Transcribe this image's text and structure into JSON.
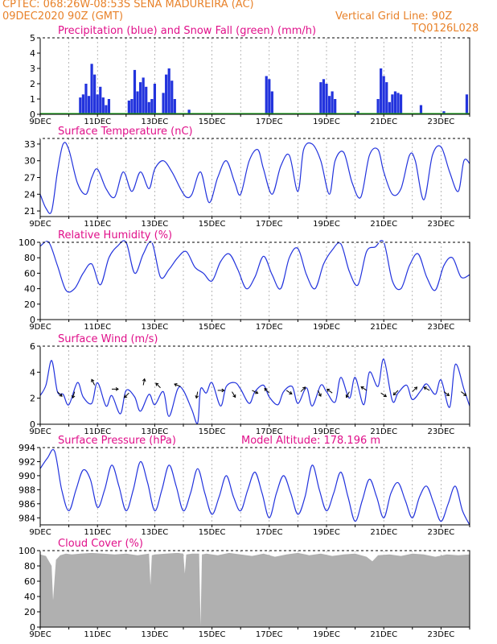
{
  "header": {
    "line1": "CPTEC:   068:26W-08:53S   SENA MADUREIRA (AC)",
    "line2": "09DEC2020 90Z (GMT)",
    "grid_note": "Vertical Grid Line: 90Z",
    "run_code": "TQ0126L028"
  },
  "colors": {
    "header": "#e8822a",
    "title": "#e0108a",
    "line": "#2233dd",
    "snow": "#22aa22",
    "cloud": "#b0b0b0",
    "arrow": "#000000"
  },
  "x_days": [
    "9DEC",
    "11DEC",
    "13DEC",
    "15DEC",
    "17DEC",
    "19DEC",
    "21DEC",
    "23DEC"
  ],
  "x_range": [
    9,
    24
  ],
  "chart_data": [
    {
      "id": "precip",
      "type": "bar",
      "title": "Precipitation (blue) and Snow Fall (green) (mm/h)",
      "ylim": [
        0,
        5
      ],
      "yticks": [
        "0",
        "1",
        "2",
        "3",
        "4",
        "5"
      ],
      "x_labels": [
        "9DEC",
        "11DEC",
        "13DEC",
        "15DEC",
        "17DEC",
        "19DEC",
        "21DEC",
        "23DEC"
      ],
      "series": [
        {
          "name": "Precipitation",
          "color": "#2233dd",
          "x": [
            10.4,
            10.5,
            10.6,
            10.7,
            10.8,
            10.9,
            11.0,
            11.1,
            11.2,
            11.3,
            11.4,
            12.1,
            12.2,
            12.3,
            12.4,
            12.5,
            12.6,
            12.7,
            12.8,
            12.9,
            13.0,
            13.3,
            13.4,
            13.5,
            13.6,
            13.7,
            14.2,
            16.9,
            17.0,
            17.1,
            18.8,
            18.9,
            19.0,
            19.1,
            19.2,
            19.3,
            20.1,
            20.8,
            20.9,
            21.0,
            21.1,
            21.2,
            21.3,
            21.4,
            21.5,
            21.6,
            22.3,
            23.1,
            23.9
          ],
          "y": [
            1.1,
            1.3,
            2.0,
            1.2,
            3.3,
            2.6,
            1.3,
            1.8,
            1.1,
            0.6,
            1.0,
            0.9,
            1.0,
            2.9,
            1.5,
            2.1,
            2.4,
            1.8,
            0.8,
            1.0,
            2.0,
            1.4,
            2.6,
            3.0,
            2.2,
            1.0,
            0.3,
            2.5,
            2.3,
            1.5,
            2.1,
            2.3,
            2.0,
            1.2,
            1.5,
            1.0,
            0.2,
            1.0,
            3.0,
            2.5,
            2.1,
            0.8,
            1.3,
            1.5,
            1.4,
            1.3,
            0.6,
            0.2,
            1.3
          ]
        },
        {
          "name": "Snow Fall",
          "color": "#22aa22",
          "x": [
            9.0,
            24.0
          ],
          "y": [
            0,
            0
          ]
        }
      ]
    },
    {
      "id": "temp",
      "type": "line",
      "title": "Surface Temperature (nC)",
      "ylim": [
        20,
        34
      ],
      "yticks": [
        "21",
        "24",
        "27",
        "30",
        "33"
      ],
      "x_labels": [
        "9DEC",
        "11DEC",
        "13DEC",
        "15DEC",
        "17DEC",
        "19DEC",
        "21DEC",
        "23DEC"
      ],
      "series": [
        {
          "name": "Temperature",
          "color": "#2233dd",
          "x": [
            9.0,
            9.2,
            9.4,
            9.6,
            9.8,
            10.0,
            10.3,
            10.6,
            10.8,
            11.0,
            11.3,
            11.6,
            11.9,
            12.2,
            12.5,
            12.8,
            13.0,
            13.3,
            13.6,
            13.9,
            14.1,
            14.3,
            14.6,
            14.9,
            15.2,
            15.5,
            15.8,
            16.0,
            16.3,
            16.6,
            16.8,
            17.1,
            17.4,
            17.7,
            18.0,
            18.2,
            18.5,
            18.8,
            19.1,
            19.3,
            19.6,
            19.9,
            20.2,
            20.5,
            20.8,
            21.0,
            21.3,
            21.6,
            21.9,
            22.1,
            22.4,
            22.7,
            23.0,
            23.3,
            23.6,
            23.8,
            24.0
          ],
          "y": [
            24,
            21.5,
            21,
            28,
            33,
            32,
            26,
            24,
            27,
            28.5,
            25,
            23.5,
            28,
            24.5,
            28,
            25,
            28.5,
            30,
            28,
            25,
            23.5,
            24,
            28,
            22.5,
            27,
            30,
            26,
            24,
            30,
            32,
            28.5,
            24,
            29,
            31,
            24.5,
            32,
            33,
            30,
            24,
            30,
            31.5,
            26,
            23.5,
            31,
            32,
            28,
            24,
            25,
            31,
            30,
            23,
            31,
            32.5,
            28,
            24.5,
            30,
            29.5
          ]
        }
      ]
    },
    {
      "id": "rh",
      "type": "line",
      "title": "Relative Humidity (%)",
      "ylim": [
        0,
        100
      ],
      "yticks": [
        "0",
        "20",
        "40",
        "60",
        "80",
        "100"
      ],
      "x_labels": [
        "9DEC",
        "11DEC",
        "13DEC",
        "15DEC",
        "17DEC",
        "19DEC",
        "21DEC",
        "23DEC"
      ],
      "series": [
        {
          "name": "Relative Humidity",
          "color": "#2233dd",
          "x": [
            9.0,
            9.3,
            9.6,
            9.9,
            10.2,
            10.5,
            10.8,
            11.1,
            11.4,
            11.7,
            12.0,
            12.3,
            12.6,
            12.9,
            13.2,
            13.5,
            13.8,
            14.1,
            14.4,
            14.7,
            15.0,
            15.3,
            15.6,
            15.9,
            16.2,
            16.5,
            16.8,
            17.1,
            17.4,
            17.7,
            18.0,
            18.3,
            18.6,
            18.9,
            19.2,
            19.5,
            19.8,
            20.1,
            20.4,
            20.7,
            21.0,
            21.3,
            21.6,
            21.9,
            22.2,
            22.5,
            22.8,
            23.1,
            23.4,
            23.7,
            24.0
          ],
          "y": [
            95,
            100,
            70,
            38,
            40,
            60,
            72,
            45,
            80,
            95,
            100,
            60,
            85,
            100,
            55,
            65,
            80,
            88,
            68,
            60,
            50,
            75,
            85,
            65,
            40,
            55,
            82,
            58,
            40,
            80,
            92,
            58,
            40,
            72,
            90,
            98,
            62,
            45,
            88,
            94,
            100,
            50,
            40,
            70,
            85,
            55,
            38,
            70,
            80,
            55,
            58
          ]
        }
      ]
    },
    {
      "id": "wind",
      "type": "line",
      "title": "Surface Wind (m/s)",
      "ylim": [
        0,
        6
      ],
      "yticks": [
        "0",
        "2",
        "4",
        "6"
      ],
      "x_labels": [
        "9DEC",
        "11DEC",
        "13DEC",
        "15DEC",
        "17DEC",
        "19DEC",
        "21DEC",
        "23DEC"
      ],
      "series": [
        {
          "name": "Wind Speed",
          "color": "#2233dd",
          "x": [
            9.0,
            9.2,
            9.4,
            9.6,
            9.8,
            10.0,
            10.3,
            10.5,
            10.8,
            11.0,
            11.3,
            11.5,
            11.8,
            12.0,
            12.3,
            12.5,
            12.8,
            13.0,
            13.3,
            13.5,
            13.8,
            14.0,
            14.3,
            14.5,
            14.6,
            14.8,
            15.0,
            15.3,
            15.5,
            15.8,
            16.0,
            16.3,
            16.5,
            16.8,
            17.0,
            17.3,
            17.5,
            17.8,
            18.0,
            18.3,
            18.5,
            18.8,
            19.0,
            19.3,
            19.5,
            19.8,
            20.0,
            20.3,
            20.5,
            20.8,
            21.0,
            21.3,
            21.5,
            21.8,
            22.0,
            22.3,
            22.5,
            22.8,
            23.0,
            23.3,
            23.5,
            23.8,
            24.0
          ],
          "y": [
            2.2,
            3.0,
            4.9,
            2.5,
            2.3,
            1.5,
            3.2,
            2.1,
            1.6,
            3.2,
            1.4,
            2.2,
            0.8,
            2.6,
            2.1,
            1.0,
            2.3,
            1.5,
            2.5,
            0.6,
            2.7,
            2.6,
            1.1,
            0.1,
            2.7,
            2.4,
            3.2,
            1.4,
            2.9,
            3.2,
            2.7,
            1.6,
            2.5,
            3.0,
            2.1,
            1.5,
            2.5,
            2.9,
            1.6,
            2.8,
            1.4,
            3.0,
            2.5,
            1.7,
            3.6,
            2.0,
            3.6,
            1.5,
            4.0,
            2.9,
            5.0,
            1.8,
            2.4,
            3.0,
            1.9,
            2.6,
            3.1,
            2.3,
            3.4,
            1.3,
            4.6,
            2.7,
            1.4
          ]
        }
      ],
      "vectors": {
        "x": [
          9.6,
          10.2,
          10.9,
          11.5,
          12.1,
          12.6,
          13.2,
          13.9,
          14.5,
          15.2,
          15.7,
          16.4,
          17.0,
          17.6,
          18.1,
          18.7,
          19.2,
          19.8,
          20.4,
          20.9,
          21.5,
          22.0,
          22.6,
          23.1,
          23.7
        ],
        "y": [
          2.5,
          2.5,
          3.0,
          2.7,
          2.4,
          3.0,
          2.8,
          2.9,
          2.5,
          2.6,
          2.5,
          2.6,
          2.4,
          2.6,
          2.5,
          2.6,
          2.4,
          2.5,
          2.6,
          2.4,
          2.6,
          2.5,
          2.6,
          2.5,
          2.5
        ],
        "u": [
          1.0,
          -0.3,
          -0.5,
          1.0,
          -0.8,
          0.2,
          -0.6,
          -1.0,
          -0.2,
          0.8,
          0.6,
          1.0,
          -0.7,
          0.9,
          0.7,
          0.5,
          -0.8,
          -0.5,
          -0.9,
          0.9,
          -0.7,
          0.6,
          -0.9,
          0.8,
          0.8
        ],
        "v": [
          -1.0,
          -1.0,
          1.0,
          0.0,
          -0.8,
          1.0,
          0.6,
          0.4,
          -1.0,
          0.0,
          -1.0,
          -0.5,
          0.7,
          -0.6,
          0.7,
          -1.0,
          0.6,
          -0.9,
          0.6,
          -0.6,
          -0.7,
          0.6,
          0.5,
          -0.6,
          -0.6
        ]
      }
    },
    {
      "id": "pres",
      "type": "line",
      "title": "Surface Pressure (hPa)",
      "annotation": "Model Altitude: 178.196 m",
      "ylim": [
        983,
        994
      ],
      "yticks": [
        "984",
        "986",
        "988",
        "990",
        "992",
        "994"
      ],
      "x_labels": [
        "9DEC",
        "11DEC",
        "13DEC",
        "15DEC",
        "17DEC",
        "19DEC",
        "21DEC",
        "23DEC"
      ],
      "series": [
        {
          "name": "Pressure",
          "color": "#2233dd",
          "x": [
            9.0,
            9.25,
            9.5,
            9.75,
            10.0,
            10.25,
            10.5,
            10.75,
            11.0,
            11.25,
            11.5,
            11.75,
            12.0,
            12.25,
            12.5,
            12.75,
            13.0,
            13.25,
            13.5,
            13.75,
            14.0,
            14.25,
            14.5,
            14.75,
            15.0,
            15.25,
            15.5,
            15.75,
            16.0,
            16.25,
            16.5,
            16.75,
            17.0,
            17.25,
            17.5,
            17.75,
            18.0,
            18.25,
            18.5,
            18.75,
            19.0,
            19.25,
            19.5,
            19.75,
            20.0,
            20.25,
            20.5,
            20.75,
            21.0,
            21.25,
            21.5,
            21.75,
            22.0,
            22.25,
            22.5,
            22.75,
            23.0,
            23.25,
            23.5,
            23.75,
            24.0
          ],
          "y": [
            991,
            992.5,
            993.5,
            988,
            985,
            988,
            990.8,
            989.5,
            985.5,
            988,
            991.5,
            988.5,
            985,
            988,
            992,
            989,
            985,
            988,
            991.5,
            988.5,
            985,
            987.5,
            991,
            987.5,
            984.5,
            987,
            990,
            987,
            985,
            988,
            990.5,
            987.5,
            984,
            987.5,
            990,
            987.5,
            984.5,
            987,
            991.5,
            988,
            985,
            987.5,
            990.5,
            987,
            983.5,
            986.5,
            989.5,
            987,
            984,
            987.5,
            989,
            986.5,
            984,
            987,
            988.5,
            986,
            983.5,
            986,
            988.5,
            985,
            983
          ]
        }
      ]
    },
    {
      "id": "cloud",
      "type": "area",
      "title": "Cloud Cover (%)",
      "ylim": [
        0,
        100
      ],
      "yticks": [
        "0",
        "20",
        "40",
        "60",
        "80",
        "100"
      ],
      "x_labels": [
        "9DEC",
        "11DEC",
        "13DEC",
        "15DEC",
        "17DEC",
        "19DEC",
        "21DEC",
        "23DEC"
      ],
      "series": [
        {
          "name": "Cloud Cover",
          "color": "#b0b0b0",
          "x": [
            9.0,
            9.2,
            9.4,
            9.45,
            9.5,
            9.55,
            9.7,
            9.9,
            10.1,
            10.4,
            10.8,
            11.2,
            11.6,
            12.0,
            12.4,
            12.8,
            12.85,
            12.9,
            13.0,
            13.4,
            13.8,
            14.0,
            14.05,
            14.1,
            14.3,
            14.55,
            14.6,
            14.65,
            14.8,
            15.2,
            15.6,
            16.0,
            16.4,
            16.8,
            17.2,
            17.6,
            18.0,
            18.4,
            18.8,
            19.2,
            19.6,
            20.0,
            20.4,
            20.6,
            20.8,
            21.2,
            21.6,
            22.0,
            22.4,
            22.8,
            23.2,
            23.6,
            24.0
          ],
          "y": [
            95,
            93,
            80,
            35,
            62,
            88,
            94,
            96,
            95,
            96,
            97,
            96,
            95,
            96,
            94,
            96,
            55,
            94,
            95,
            96,
            97,
            96,
            70,
            95,
            96,
            96,
            2,
            95,
            96,
            94,
            97,
            95,
            93,
            96,
            92,
            95,
            97,
            94,
            96,
            93,
            95,
            96,
            92,
            86,
            94,
            95,
            93,
            96,
            95,
            92,
            95,
            94,
            95
          ]
        }
      ]
    }
  ]
}
